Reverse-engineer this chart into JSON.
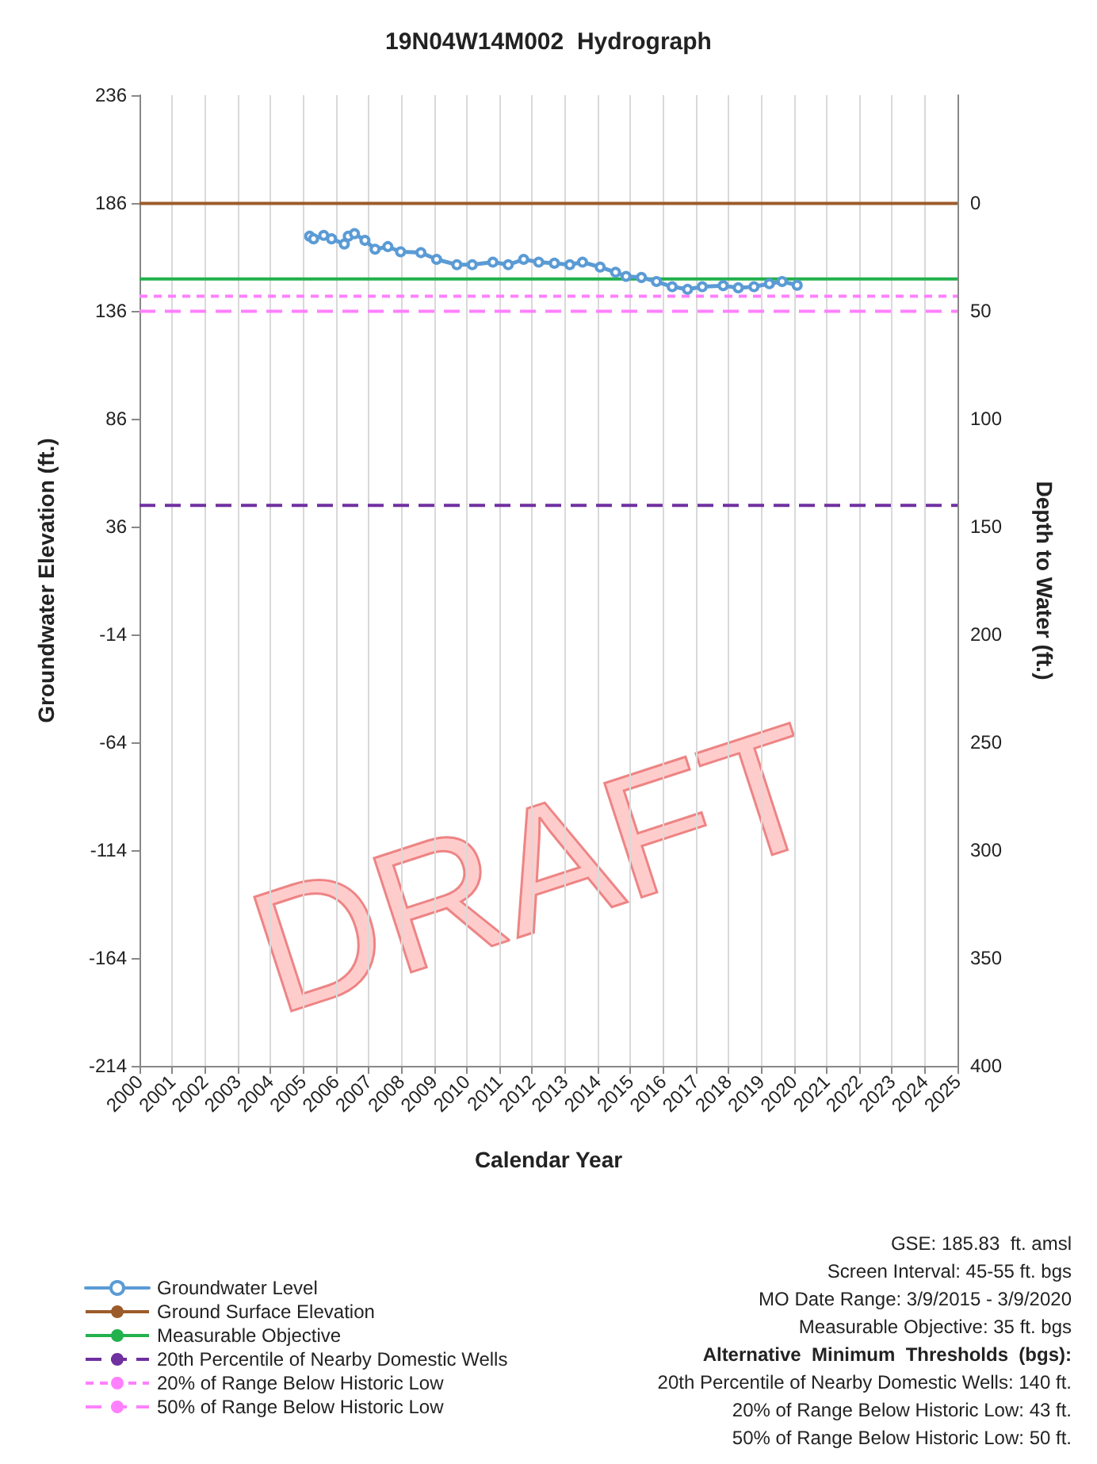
{
  "chart_data": {
    "type": "line",
    "title": "19N04W14M002  Hydrograph",
    "xlabel": "Calendar Year",
    "ylabel": "Groundwater Elevation (ft.)",
    "y2label": "Depth to Water (ft.)",
    "xlim": [
      2000,
      2025
    ],
    "xticks": [
      2000,
      2001,
      2002,
      2003,
      2004,
      2005,
      2006,
      2007,
      2008,
      2009,
      2010,
      2011,
      2012,
      2013,
      2014,
      2015,
      2016,
      2017,
      2018,
      2019,
      2020,
      2021,
      2022,
      2023,
      2024,
      2025
    ],
    "ylim": [
      -214,
      236
    ],
    "yticks": [
      -214,
      -164,
      -114,
      -64,
      -14,
      36,
      86,
      136,
      186,
      236
    ],
    "y2lim": [
      400,
      -50
    ],
    "y2ticks": [
      0,
      50,
      100,
      150,
      200,
      250,
      300,
      350,
      400
    ],
    "grid": "x",
    "legend": "bottom left",
    "marker": "circle",
    "line_style": "solid",
    "series": [
      {
        "name": "Groundwater Level",
        "color": "#5b9bd5",
        "x": [
          2005.2,
          2005.32,
          2005.63,
          2005.87,
          2006.26,
          2006.38,
          2006.57,
          2006.89,
          2007.2,
          2007.59,
          2007.98,
          2008.6,
          2009.08,
          2009.7,
          2010.17,
          2010.8,
          2011.27,
          2011.74,
          2012.2,
          2012.68,
          2013.15,
          2013.54,
          2014.08,
          2014.55,
          2014.87,
          2015.34,
          2015.8,
          2016.28,
          2016.75,
          2017.2,
          2017.84,
          2018.3,
          2018.78,
          2019.25,
          2019.64,
          2020.1
        ],
        "values": [
          170.6,
          169.4,
          171,
          169.4,
          167,
          170.6,
          171.8,
          168.7,
          164.6,
          165.8,
          163.4,
          163,
          159.9,
          157.4,
          157.4,
          158.6,
          157.4,
          159.9,
          158.6,
          158.1,
          157.4,
          158.6,
          156.3,
          153.9,
          152,
          151.5,
          149.6,
          147.2,
          146,
          147.2,
          147.7,
          146.7,
          147.2,
          148.6,
          149.6,
          147.9
        ]
      }
    ],
    "ref_lines": [
      {
        "axis": "y",
        "value": 185.83,
        "label": "Ground Surface Elevation",
        "color": "#9c5b2b",
        "line_style": "solid"
      },
      {
        "axis": "y",
        "value": 150.83,
        "label": "Measurable Objective",
        "color": "#22b14c",
        "line_style": "solid"
      },
      {
        "axis": "y",
        "value": 45.83,
        "label": "20th Percentile of Nearby Domestic Wells",
        "color": "#7030a0",
        "line_style": "dashed"
      },
      {
        "axis": "y",
        "value": 142.83,
        "label": "20% of Range Below Historic Low",
        "color": "#ff80ff",
        "line_style": "dotted"
      },
      {
        "axis": "y",
        "value": 135.83,
        "label": "50% of Range Below Historic Low",
        "color": "#ff80ff",
        "line_style": "dashed"
      }
    ],
    "annotations": [
      "GSE: 185.83  ft. amsl",
      "Screen Interval: 45-55 ft. bgs",
      "MO Date Range: 3/9/2015 - 3/9/2020",
      "Measurable Objective: 35 ft. bgs",
      "Alternative  Minimum  Thresholds  (bgs):",
      "20th Percentile of Nearby Domestic Wells: 140 ft.",
      "20% of Range Below Historic Low: 43 ft.",
      "50% of Range Below Historic Low: 50 ft.",
      "DRAFT"
    ]
  }
}
